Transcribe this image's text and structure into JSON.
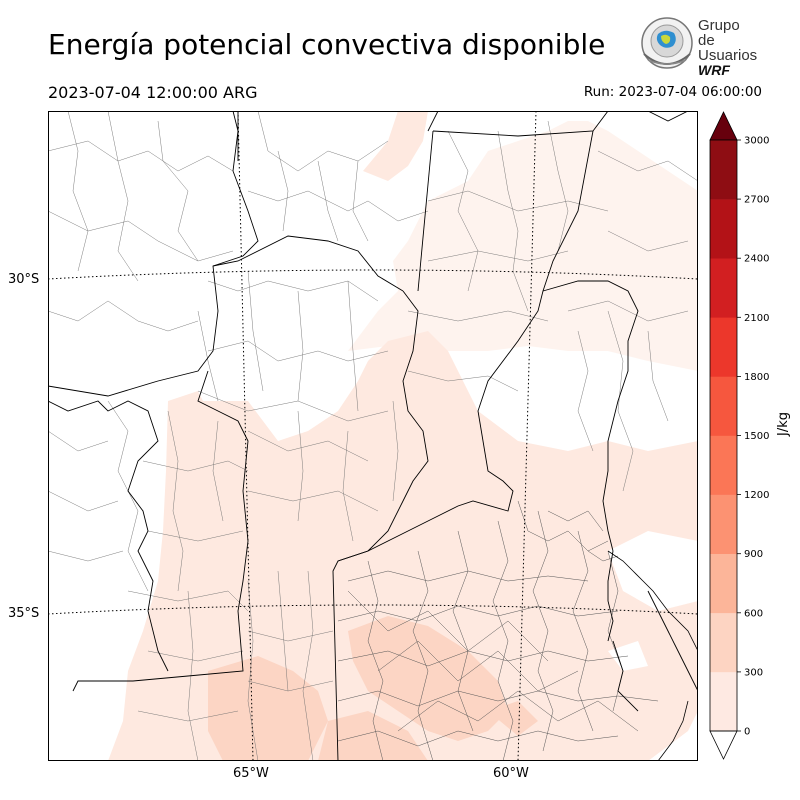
{
  "title": "Energía potencial convectiva disponible",
  "valid_time": "2023-07-04 12:00:00 ARG",
  "run_time": "Run: 2023-07-04 06:00:00",
  "logo": {
    "line1": "Grupo de",
    "line2": "Usuarios",
    "line3": "WRF",
    "icon": "wrf-globe-logo-icon"
  },
  "map": {
    "lat_labels": [
      "30°S",
      "35°S"
    ],
    "lon_labels": [
      "65°W",
      "60°W"
    ],
    "field": "CAPE",
    "background_color": "#ffffff",
    "fill_colors": {
      "low": "#fee9e0",
      "mid": "#fcd5c4"
    }
  },
  "colorbar": {
    "units": "J/kg",
    "ticks": [
      "3000",
      "2700",
      "2400",
      "2100",
      "1800",
      "1500",
      "1200",
      "900",
      "600",
      "300",
      "0"
    ],
    "levels": [
      0,
      300,
      600,
      900,
      1200,
      1500,
      1800,
      2100,
      2400,
      2700,
      3000
    ],
    "colors": [
      "#fee9e2",
      "#fdd4c2",
      "#fcb599",
      "#fc9272",
      "#fb7656",
      "#f6573e",
      "#ec372b",
      "#d21f21",
      "#b31217",
      "#8e0d13",
      "#67000d"
    ],
    "extend": "both"
  }
}
